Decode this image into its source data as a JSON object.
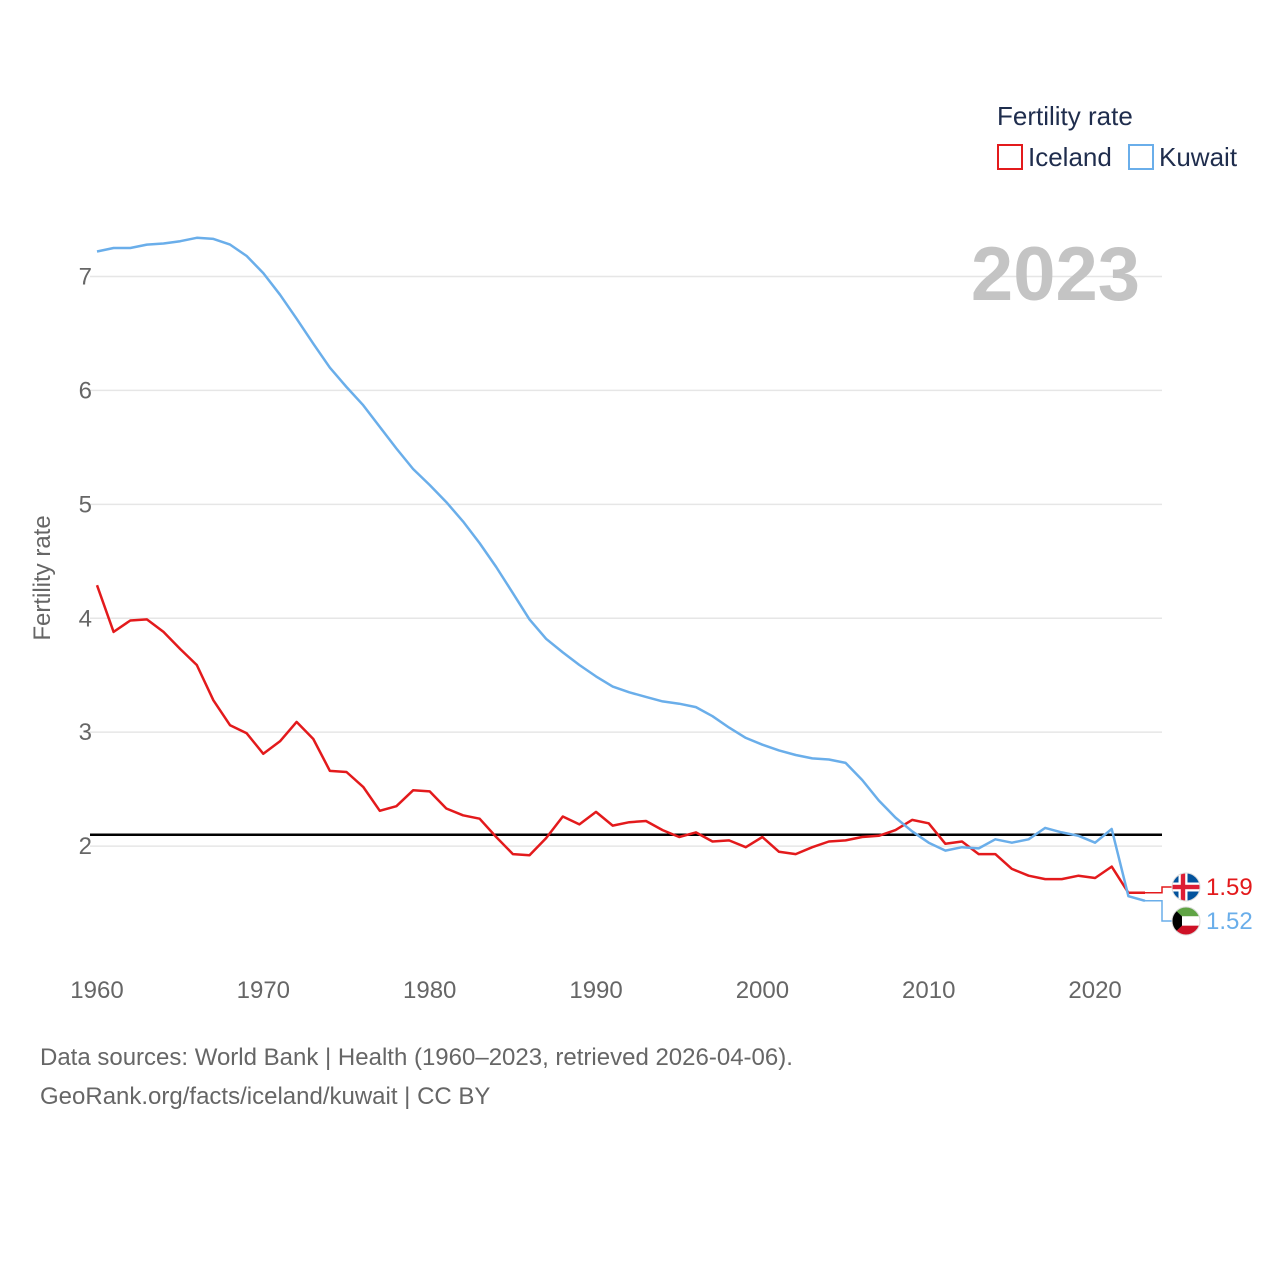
{
  "chart_data": {
    "type": "line",
    "ylabel": "Fertility rate",
    "current_year": "2023",
    "legend_title": "Fertility rate",
    "x": [
      1960,
      1961,
      1962,
      1963,
      1964,
      1965,
      1966,
      1967,
      1968,
      1969,
      1970,
      1971,
      1972,
      1973,
      1974,
      1975,
      1976,
      1977,
      1978,
      1979,
      1980,
      1981,
      1982,
      1983,
      1984,
      1985,
      1986,
      1987,
      1988,
      1989,
      1990,
      1991,
      1992,
      1993,
      1994,
      1995,
      1996,
      1997,
      1998,
      1999,
      2000,
      2001,
      2002,
      2003,
      2004,
      2005,
      2006,
      2007,
      2008,
      2009,
      2010,
      2011,
      2012,
      2013,
      2014,
      2015,
      2016,
      2017,
      2018,
      2019,
      2020,
      2021,
      2022,
      2023
    ],
    "xlim": [
      1960,
      2023
    ],
    "ylim": [
      1.0,
      7.9
    ],
    "x_ticks": [
      "1960",
      "1970",
      "1980",
      "1990",
      "2000",
      "2010",
      "2020"
    ],
    "y_ticks": [
      "2",
      "3",
      "4",
      "5",
      "6",
      "7"
    ],
    "reference_line": 2.1,
    "series": [
      {
        "name": "Iceland",
        "color": "#e31a1c",
        "flag": "iceland-flag",
        "end_label": "1.59",
        "values": [
          4.29,
          3.88,
          3.98,
          3.99,
          3.88,
          3.73,
          3.59,
          3.28,
          3.06,
          2.99,
          2.81,
          2.92,
          3.09,
          2.94,
          2.66,
          2.65,
          2.52,
          2.31,
          2.35,
          2.49,
          2.48,
          2.33,
          2.27,
          2.24,
          2.08,
          1.93,
          1.92,
          2.07,
          2.26,
          2.19,
          2.3,
          2.18,
          2.21,
          2.22,
          2.14,
          2.08,
          2.12,
          2.04,
          2.05,
          1.99,
          2.08,
          1.95,
          1.93,
          1.99,
          2.04,
          2.05,
          2.08,
          2.09,
          2.14,
          2.23,
          2.2,
          2.02,
          2.04,
          1.93,
          1.93,
          1.8,
          1.74,
          1.71,
          1.71,
          1.74,
          1.72,
          1.82,
          1.59,
          1.59
        ]
      },
      {
        "name": "Kuwait",
        "color": "#6aaeea",
        "flag": "kuwait-flag",
        "end_label": "1.52",
        "values": [
          7.22,
          7.25,
          7.25,
          7.28,
          7.29,
          7.31,
          7.34,
          7.33,
          7.28,
          7.18,
          7.03,
          6.84,
          6.63,
          6.41,
          6.2,
          6.03,
          5.87,
          5.68,
          5.49,
          5.31,
          5.17,
          5.02,
          4.85,
          4.66,
          4.45,
          4.22,
          3.99,
          3.82,
          3.7,
          3.59,
          3.49,
          3.4,
          3.35,
          3.31,
          3.27,
          3.25,
          3.22,
          3.14,
          3.04,
          2.95,
          2.89,
          2.84,
          2.8,
          2.77,
          2.76,
          2.73,
          2.58,
          2.4,
          2.25,
          2.13,
          2.03,
          1.96,
          1.99,
          1.98,
          2.06,
          2.03,
          2.06,
          2.16,
          2.12,
          2.09,
          2.03,
          2.15,
          1.56,
          1.52
        ]
      }
    ]
  },
  "source": {
    "line1": "Data sources: World Bank | Health (1960–2023, retrieved 2026-04-06).",
    "line2": "GeoRank.org/facts/iceland/kuwait | CC BY"
  }
}
